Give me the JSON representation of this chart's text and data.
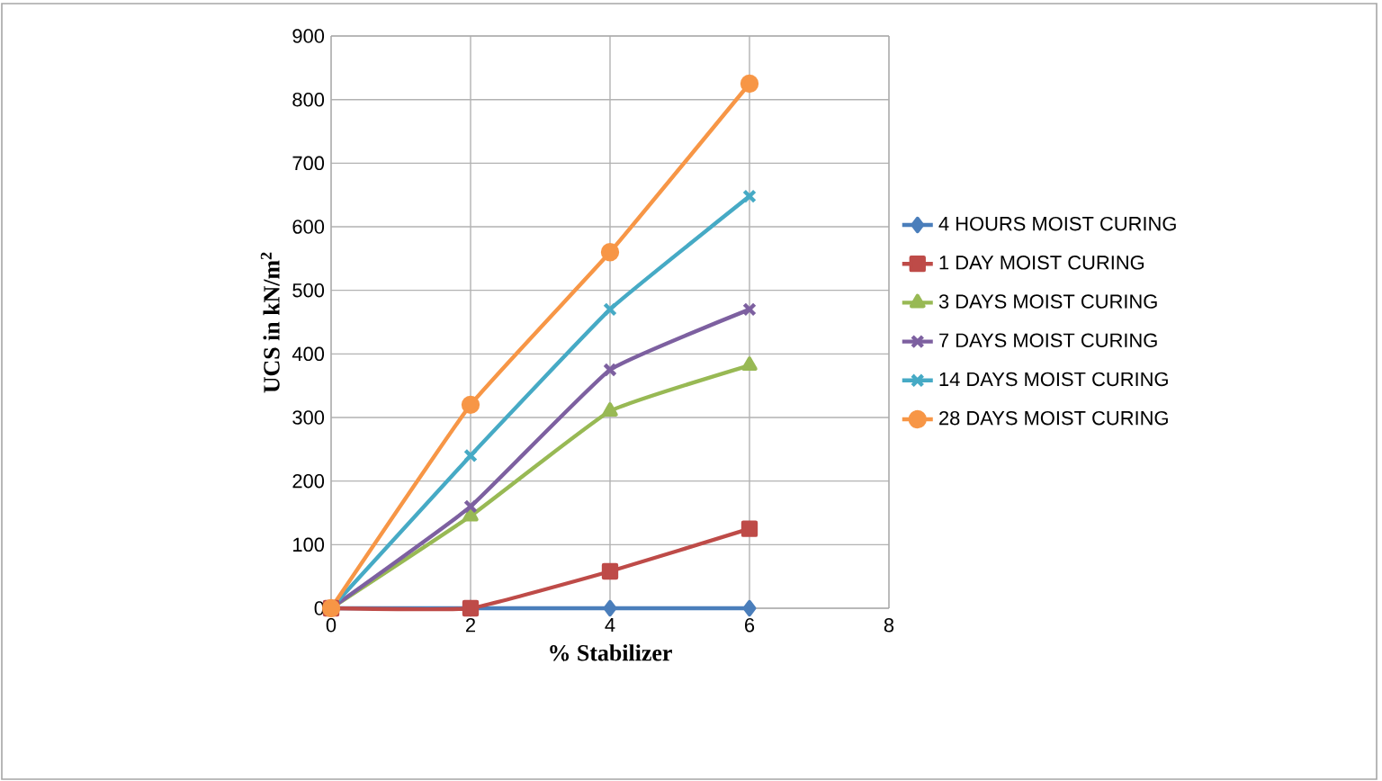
{
  "chart_data": {
    "type": "line",
    "xlabel": "% Stabilizer",
    "ylabel": "UCS in kN/m$^{2}$",
    "x": [
      0,
      2,
      4,
      6
    ],
    "xlim": [
      0,
      8
    ],
    "xticks": [
      0,
      2,
      4,
      6,
      8
    ],
    "ylim": [
      0,
      900
    ],
    "yticks": [
      0,
      100,
      200,
      300,
      400,
      500,
      600,
      700,
      800,
      900
    ],
    "grid": true,
    "legend": "right",
    "series": [
      {
        "name": "4 HOURS MOIST CURING",
        "color": "#4a7ebb",
        "marker": "diamond",
        "values": [
          0,
          0,
          0,
          0
        ]
      },
      {
        "name": "1 DAY MOIST CURING",
        "color": "#be4b48",
        "marker": "square",
        "values": [
          0,
          0,
          58,
          125
        ]
      },
      {
        "name": "3 DAYS MOIST CURING",
        "color": "#98b954",
        "marker": "triangle",
        "values": [
          0,
          145,
          310,
          382
        ]
      },
      {
        "name": "7 DAYS MOIST CURING",
        "color": "#7d60a0",
        "marker": "cross",
        "values": [
          0,
          160,
          375,
          470
        ]
      },
      {
        "name": "14 DAYS MOIST CURING",
        "color": "#46aac5",
        "marker": "cross",
        "values": [
          0,
          240,
          470,
          648
        ]
      },
      {
        "name": "28 DAYS MOIST CURING",
        "color": "#f79646",
        "marker": "circle",
        "values": [
          0,
          320,
          560,
          825
        ]
      }
    ]
  }
}
